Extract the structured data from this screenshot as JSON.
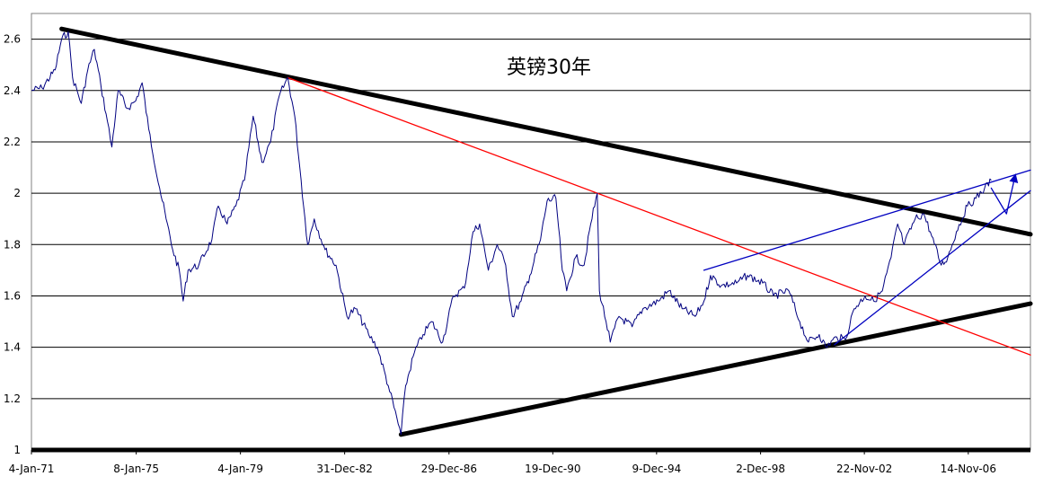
{
  "chart_data": {
    "type": "line",
    "title": "英镑30年",
    "xlabel": "",
    "ylabel": "",
    "ylim": [
      1,
      2.7
    ],
    "xlim": [
      "1971-01-04",
      "2009-04-01"
    ],
    "grid": "horizontal",
    "y_ticks": [
      1,
      1.2,
      1.4,
      1.6,
      1.8,
      2,
      2.2,
      2.4,
      2.6
    ],
    "x_ticks": [
      {
        "label": "4-Jan-71",
        "date": "1971-01-04"
      },
      {
        "label": "8-Jan-75",
        "date": "1975-01-08"
      },
      {
        "label": "4-Jan-79",
        "date": "1979-01-04"
      },
      {
        "label": "31-Dec-82",
        "date": "1982-12-31"
      },
      {
        "label": "29-Dec-86",
        "date": "1986-12-29"
      },
      {
        "label": "19-Dec-90",
        "date": "1990-12-19"
      },
      {
        "label": "9-Dec-94",
        "date": "1994-12-09"
      },
      {
        "label": "2-Dec-98",
        "date": "1998-12-02"
      },
      {
        "label": "22-Nov-02",
        "date": "2002-11-22"
      },
      {
        "label": "14-Nov-06",
        "date": "2006-11-14"
      }
    ],
    "series": [
      {
        "color": "#000080",
        "points": [
          [
            "1971-01-04",
            2.4
          ],
          [
            "1971-06-01",
            2.41
          ],
          [
            "1971-12-01",
            2.48
          ],
          [
            "1972-03-01",
            2.6
          ],
          [
            "1972-06-01",
            2.63
          ],
          [
            "1972-08-01",
            2.45
          ],
          [
            "1972-12-01",
            2.35
          ],
          [
            "1973-03-01",
            2.48
          ],
          [
            "1973-06-01",
            2.56
          ],
          [
            "1973-09-01",
            2.42
          ],
          [
            "1973-12-01",
            2.28
          ],
          [
            "1974-02-01",
            2.18
          ],
          [
            "1974-05-01",
            2.4
          ],
          [
            "1974-09-01",
            2.33
          ],
          [
            "1975-01-01",
            2.36
          ],
          [
            "1975-04-01",
            2.43
          ],
          [
            "1975-07-01",
            2.25
          ],
          [
            "1975-12-01",
            2.02
          ],
          [
            "1976-03-01",
            1.9
          ],
          [
            "1976-06-01",
            1.78
          ],
          [
            "1976-09-01",
            1.7
          ],
          [
            "1976-10-25",
            1.58
          ],
          [
            "1977-01-01",
            1.7
          ],
          [
            "1977-06-01",
            1.72
          ],
          [
            "1977-12-01",
            1.82
          ],
          [
            "1978-03-01",
            1.95
          ],
          [
            "1978-07-01",
            1.88
          ],
          [
            "1978-11-01",
            1.95
          ],
          [
            "1979-03-01",
            2.05
          ],
          [
            "1979-07-01",
            2.3
          ],
          [
            "1979-11-01",
            2.12
          ],
          [
            "1980-03-01",
            2.2
          ],
          [
            "1980-07-01",
            2.38
          ],
          [
            "1980-10-27",
            2.45
          ],
          [
            "1981-02-01",
            2.3
          ],
          [
            "1981-05-01",
            2.05
          ],
          [
            "1981-08-01",
            1.8
          ],
          [
            "1981-11-01",
            1.9
          ],
          [
            "1982-04-01",
            1.78
          ],
          [
            "1982-09-01",
            1.72
          ],
          [
            "1983-02-01",
            1.52
          ],
          [
            "1983-06-01",
            1.55
          ],
          [
            "1983-12-01",
            1.45
          ],
          [
            "1984-04-01",
            1.4
          ],
          [
            "1984-09-01",
            1.25
          ],
          [
            "1985-02-26",
            1.06
          ],
          [
            "1985-05-01",
            1.25
          ],
          [
            "1985-09-01",
            1.38
          ],
          [
            "1986-01-01",
            1.45
          ],
          [
            "1986-05-01",
            1.5
          ],
          [
            "1986-10-01",
            1.42
          ],
          [
            "1987-03-01",
            1.6
          ],
          [
            "1987-08-01",
            1.63
          ],
          [
            "1987-12-01",
            1.85
          ],
          [
            "1988-03-01",
            1.88
          ],
          [
            "1988-07-01",
            1.7
          ],
          [
            "1988-11-01",
            1.8
          ],
          [
            "1989-03-01",
            1.72
          ],
          [
            "1989-06-01",
            1.52
          ],
          [
            "1989-10-01",
            1.58
          ],
          [
            "1990-02-01",
            1.68
          ],
          [
            "1990-07-01",
            1.82
          ],
          [
            "1990-10-01",
            1.97
          ],
          [
            "1991-02-01",
            1.98
          ],
          [
            "1991-05-01",
            1.7
          ],
          [
            "1991-07-01",
            1.62
          ],
          [
            "1991-11-01",
            1.75
          ],
          [
            "1992-03-01",
            1.72
          ],
          [
            "1992-06-01",
            1.88
          ],
          [
            "1992-09-01",
            2.0
          ],
          [
            "1992-10-01",
            1.62
          ],
          [
            "1993-01-01",
            1.5
          ],
          [
            "1993-03-01",
            1.42
          ],
          [
            "1993-07-01",
            1.52
          ],
          [
            "1994-01-01",
            1.48
          ],
          [
            "1994-06-01",
            1.55
          ],
          [
            "1995-01-01",
            1.58
          ],
          [
            "1995-06-01",
            1.62
          ],
          [
            "1995-12-01",
            1.55
          ],
          [
            "1996-06-01",
            1.52
          ],
          [
            "1996-10-01",
            1.58
          ],
          [
            "1997-01-01",
            1.68
          ],
          [
            "1997-06-01",
            1.64
          ],
          [
            "1998-01-01",
            1.65
          ],
          [
            "1998-06-01",
            1.68
          ],
          [
            "1999-01-01",
            1.65
          ],
          [
            "1999-06-01",
            1.6
          ],
          [
            "2000-01-01",
            1.62
          ],
          [
            "2000-06-01",
            1.5
          ],
          [
            "2000-10-01",
            1.42
          ],
          [
            "2001-03-01",
            1.45
          ],
          [
            "2001-06-01",
            1.4
          ],
          [
            "2001-11-01",
            1.44
          ],
          [
            "2002-03-01",
            1.43
          ],
          [
            "2002-07-01",
            1.55
          ],
          [
            "2002-12-01",
            1.6
          ],
          [
            "2003-04-01",
            1.58
          ],
          [
            "2003-08-01",
            1.62
          ],
          [
            "2003-12-01",
            1.75
          ],
          [
            "2004-03-01",
            1.88
          ],
          [
            "2004-06-01",
            1.8
          ],
          [
            "2004-11-01",
            1.9
          ],
          [
            "2005-03-01",
            1.92
          ],
          [
            "2005-06-01",
            1.85
          ],
          [
            "2005-11-01",
            1.72
          ],
          [
            "2006-02-01",
            1.75
          ],
          [
            "2006-06-01",
            1.85
          ],
          [
            "2006-11-01",
            1.95
          ],
          [
            "2007-03-01",
            1.98
          ],
          [
            "2007-07-01",
            2.02
          ],
          [
            "2007-10-01",
            2.05
          ]
        ]
      }
    ],
    "trendlines": [
      {
        "color": "#000000",
        "width": "thick",
        "from": [
          "1972-03-01",
          2.64
        ],
        "to": [
          "2009-04-01",
          1.84
        ]
      },
      {
        "color": "#000000",
        "width": "thick",
        "from": [
          "1985-02-26",
          1.06
        ],
        "to": [
          "2009-04-01",
          1.57
        ]
      },
      {
        "color": "#ff0000",
        "width": "thin",
        "from": [
          "1980-10-27",
          2.45
        ],
        "to": [
          "2009-04-01",
          1.37
        ]
      },
      {
        "color": "#0000c0",
        "width": "thin",
        "from": [
          "1996-10-01",
          1.7
        ],
        "to": [
          "2009-04-01",
          2.09
        ]
      },
      {
        "color": "#0000c0",
        "width": "thin",
        "from": [
          "2001-10-01",
          1.41
        ],
        "to": [
          "2009-04-01",
          2.01
        ]
      },
      {
        "color": "#0000c0",
        "width": "thin",
        "from": [
          "2007-10-01",
          2.02
        ],
        "to": [
          "2008-05-01",
          1.92
        ]
      },
      {
        "color": "#0000c0",
        "width": "thin",
        "from": [
          "2008-05-01",
          1.92
        ],
        "to": [
          "2008-09-01",
          2.07
        ],
        "arrow": true
      }
    ]
  }
}
